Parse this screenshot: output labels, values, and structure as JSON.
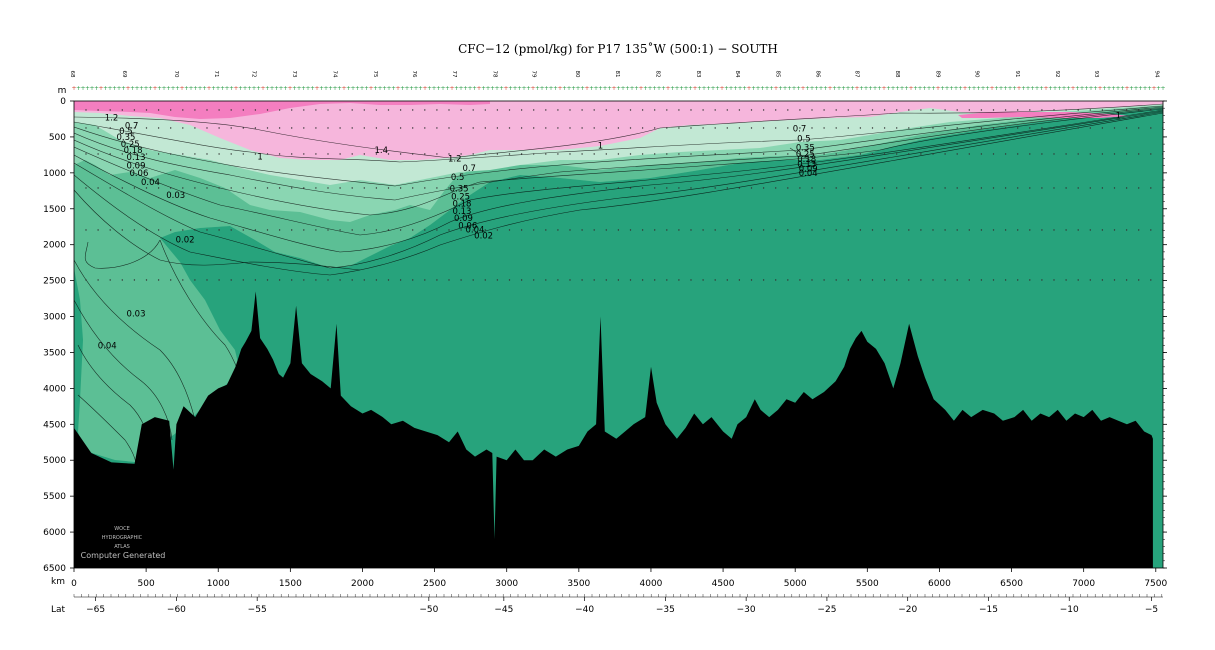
{
  "chart_data": {
    "type": "heatmap",
    "title": "CFC−12 (pmol/kg) for P17 135˚W (500:1) − SOUTH",
    "depth_unit": "m",
    "distance_unit": "km",
    "lat_label": "Lat",
    "x_range_km": [
      0,
      7550
    ],
    "y_range_m": [
      0,
      6500
    ],
    "y_ticks": [
      "0",
      "500",
      "1000",
      "1500",
      "2000",
      "2500",
      "3000",
      "3500",
      "4000",
      "4500",
      "5000",
      "5500",
      "6000",
      "6500"
    ],
    "x_ticks": [
      "0",
      "500",
      "1000",
      "1500",
      "2000",
      "2500",
      "3000",
      "3500",
      "4000",
      "4500",
      "5000",
      "5500",
      "6000",
      "6500",
      "7000",
      "7500"
    ],
    "lat_ticks": [
      "−65",
      "−60",
      "−55",
      "−50",
      "−45",
      "−40",
      "−35",
      "−30",
      "−25",
      "−20",
      "−15",
      "−10",
      "−5"
    ],
    "lat_ticks_km": [
      150,
      710,
      1270,
      2460,
      2980,
      3540,
      4100,
      4660,
      5220,
      5780,
      6340,
      6900,
      7470
    ],
    "station_labels": [
      "68",
      "69",
      "70",
      "71",
      "72",
      "73",
      "74",
      "75",
      "76",
      "77",
      "78",
      "79",
      "80",
      "81",
      "82",
      "83",
      "84",
      "85",
      "86",
      "87",
      "88",
      "89",
      "90",
      "91",
      "92",
      "93",
      "94"
    ],
    "station_km": [
      0,
      360,
      720,
      1000,
      1260,
      1540,
      1820,
      2100,
      2370,
      2650,
      2930,
      3200,
      3500,
      3780,
      4060,
      4340,
      4610,
      4890,
      5170,
      5440,
      5720,
      6000,
      6270,
      6550,
      6830,
      7100,
      7520
    ],
    "contour_levels": [
      "0.02",
      "0.03",
      "0.04",
      "0.06",
      "0.09",
      "0.13",
      "0.18",
      "0.25",
      "0.35",
      "0.5",
      "0.7",
      "1",
      "1.2",
      "1.4"
    ],
    "contour_labels": [
      {
        "text": "1.2",
        "x_km": 260,
        "depth_m": 230
      },
      {
        "text": "0.7",
        "x_km": 400,
        "depth_m": 340
      },
      {
        "text": "0.5",
        "x_km": 360,
        "depth_m": 420
      },
      {
        "text": "0.35",
        "x_km": 360,
        "depth_m": 500
      },
      {
        "text": "0.25",
        "x_km": 390,
        "depth_m": 600
      },
      {
        "text": "0.18",
        "x_km": 410,
        "depth_m": 680
      },
      {
        "text": "0.13",
        "x_km": 430,
        "depth_m": 780
      },
      {
        "text": "0.09",
        "x_km": 430,
        "depth_m": 900
      },
      {
        "text": "0.06",
        "x_km": 450,
        "depth_m": 1000
      },
      {
        "text": "0.04",
        "x_km": 530,
        "depth_m": 1130
      },
      {
        "text": "0.03",
        "x_km": 705,
        "depth_m": 1310
      },
      {
        "text": "0.02",
        "x_km": 770,
        "depth_m": 1930
      },
      {
        "text": "0.03",
        "x_km": 430,
        "depth_m": 2960
      },
      {
        "text": "0.04",
        "x_km": 230,
        "depth_m": 3400
      },
      {
        "text": "1",
        "x_km": 1290,
        "depth_m": 770
      },
      {
        "text": "1.4",
        "x_km": 2130,
        "depth_m": 680
      },
      {
        "text": "1.2",
        "x_km": 2640,
        "depth_m": 800
      },
      {
        "text": "0.7",
        "x_km": 2740,
        "depth_m": 930
      },
      {
        "text": "0.5",
        "x_km": 2660,
        "depth_m": 1060
      },
      {
        "text": "0.35",
        "x_km": 2670,
        "depth_m": 1220
      },
      {
        "text": "0.25",
        "x_km": 2680,
        "depth_m": 1330
      },
      {
        "text": "0.18",
        "x_km": 2690,
        "depth_m": 1430
      },
      {
        "text": "0.13",
        "x_km": 2690,
        "depth_m": 1530
      },
      {
        "text": "0.09",
        "x_km": 2700,
        "depth_m": 1630
      },
      {
        "text": "0.06",
        "x_km": 2730,
        "depth_m": 1730
      },
      {
        "text": "0.04",
        "x_km": 2780,
        "depth_m": 1790
      },
      {
        "text": "0.02",
        "x_km": 2840,
        "depth_m": 1870
      },
      {
        "text": "1",
        "x_km": 3650,
        "depth_m": 620
      },
      {
        "text": "0.7",
        "x_km": 5030,
        "depth_m": 380
      },
      {
        "text": "0.5",
        "x_km": 5060,
        "depth_m": 520
      },
      {
        "text": "0.35",
        "x_km": 5070,
        "depth_m": 650
      },
      {
        "text": "0.25",
        "x_km": 5070,
        "depth_m": 740
      },
      {
        "text": "0.18",
        "x_km": 5080,
        "depth_m": 810
      },
      {
        "text": "0.13",
        "x_km": 5080,
        "depth_m": 880
      },
      {
        "text": "0.09",
        "x_km": 5090,
        "depth_m": 940
      },
      {
        "text": "0.04",
        "x_km": 5090,
        "depth_m": 1000
      },
      {
        "text": "1",
        "x_km": 7240,
        "depth_m": 200
      }
    ],
    "bottom_profile": [
      [
        0,
        4550
      ],
      [
        120,
        4900
      ],
      [
        260,
        5030
      ],
      [
        420,
        5050
      ],
      [
        470,
        4500
      ],
      [
        560,
        4400
      ],
      [
        660,
        4450
      ],
      [
        690,
        5130
      ],
      [
        710,
        4500
      ],
      [
        760,
        4250
      ],
      [
        840,
        4400
      ],
      [
        930,
        4100
      ],
      [
        1000,
        4000
      ],
      [
        1060,
        3950
      ],
      [
        1120,
        3700
      ],
      [
        1160,
        3450
      ],
      [
        1190,
        3350
      ],
      [
        1230,
        3200
      ],
      [
        1260,
        2650
      ],
      [
        1290,
        3300
      ],
      [
        1340,
        3450
      ],
      [
        1380,
        3600
      ],
      [
        1420,
        3800
      ],
      [
        1450,
        3850
      ],
      [
        1500,
        3650
      ],
      [
        1540,
        2850
      ],
      [
        1580,
        3650
      ],
      [
        1640,
        3800
      ],
      [
        1720,
        3900
      ],
      [
        1780,
        4000
      ],
      [
        1820,
        3100
      ],
      [
        1850,
        4100
      ],
      [
        1920,
        4250
      ],
      [
        2000,
        4350
      ],
      [
        2060,
        4300
      ],
      [
        2140,
        4400
      ],
      [
        2200,
        4500
      ],
      [
        2280,
        4450
      ],
      [
        2360,
        4550
      ],
      [
        2440,
        4600
      ],
      [
        2520,
        4650
      ],
      [
        2600,
        4750
      ],
      [
        2660,
        4600
      ],
      [
        2720,
        4850
      ],
      [
        2780,
        4950
      ],
      [
        2860,
        4850
      ],
      [
        2900,
        4900
      ],
      [
        2915,
        6100
      ],
      [
        2930,
        4950
      ],
      [
        3000,
        5000
      ],
      [
        3060,
        4850
      ],
      [
        3120,
        5000
      ],
      [
        3180,
        5000
      ],
      [
        3260,
        4850
      ],
      [
        3340,
        4950
      ],
      [
        3420,
        4850
      ],
      [
        3500,
        4800
      ],
      [
        3560,
        4600
      ],
      [
        3620,
        4500
      ],
      [
        3650,
        3000
      ],
      [
        3680,
        4600
      ],
      [
        3760,
        4700
      ],
      [
        3820,
        4600
      ],
      [
        3880,
        4500
      ],
      [
        3960,
        4400
      ],
      [
        4000,
        3700
      ],
      [
        4040,
        4200
      ],
      [
        4100,
        4500
      ],
      [
        4180,
        4700
      ],
      [
        4240,
        4550
      ],
      [
        4300,
        4350
      ],
      [
        4360,
        4500
      ],
      [
        4420,
        4400
      ],
      [
        4500,
        4600
      ],
      [
        4560,
        4700
      ],
      [
        4600,
        4500
      ],
      [
        4660,
        4400
      ],
      [
        4720,
        4150
      ],
      [
        4760,
        4300
      ],
      [
        4820,
        4400
      ],
      [
        4880,
        4300
      ],
      [
        4940,
        4150
      ],
      [
        5000,
        4200
      ],
      [
        5060,
        4050
      ],
      [
        5120,
        4150
      ],
      [
        5200,
        4050
      ],
      [
        5280,
        3900
      ],
      [
        5340,
        3700
      ],
      [
        5380,
        3450
      ],
      [
        5420,
        3300
      ],
      [
        5460,
        3200
      ],
      [
        5500,
        3350
      ],
      [
        5560,
        3450
      ],
      [
        5620,
        3650
      ],
      [
        5680,
        4000
      ],
      [
        5730,
        3650
      ],
      [
        5790,
        3100
      ],
      [
        5850,
        3550
      ],
      [
        5900,
        3850
      ],
      [
        5960,
        4150
      ],
      [
        6040,
        4300
      ],
      [
        6100,
        4450
      ],
      [
        6160,
        4300
      ],
      [
        6220,
        4400
      ],
      [
        6300,
        4300
      ],
      [
        6380,
        4350
      ],
      [
        6440,
        4450
      ],
      [
        6520,
        4400
      ],
      [
        6580,
        4300
      ],
      [
        6640,
        4450
      ],
      [
        6700,
        4350
      ],
      [
        6760,
        4400
      ],
      [
        6820,
        4300
      ],
      [
        6880,
        4450
      ],
      [
        6940,
        4350
      ],
      [
        7000,
        4400
      ],
      [
        7060,
        4300
      ],
      [
        7120,
        4450
      ],
      [
        7180,
        4400
      ],
      [
        7240,
        4450
      ],
      [
        7300,
        4500
      ],
      [
        7360,
        4450
      ],
      [
        7420,
        4600
      ],
      [
        7470,
        4650
      ],
      [
        7480,
        4700
      ]
    ],
    "color_bands": [
      {
        "range": "> 1.2",
        "color": "#f47ec0"
      },
      {
        "range": "0.7 - 1.2",
        "color": "#f6b6dc"
      },
      {
        "range": "0.35 - 0.7",
        "color": "#c2e8d4"
      },
      {
        "range": "0.09 - 0.35",
        "color": "#8ad6b2"
      },
      {
        "range": "0.03 - 0.09",
        "color": "#5cbf95"
      },
      {
        "range": "0.02 - 0.03",
        "color": "#3cae86"
      },
      {
        "range": "< 0.02",
        "color": "#27a37c"
      },
      {
        "range": "bottom",
        "color": "#000000"
      }
    ]
  },
  "watermark": {
    "line1": "WOCE",
    "line2": "HYDROGRAPHIC",
    "line3": "ATLAS",
    "line4": "Computer Generated"
  }
}
